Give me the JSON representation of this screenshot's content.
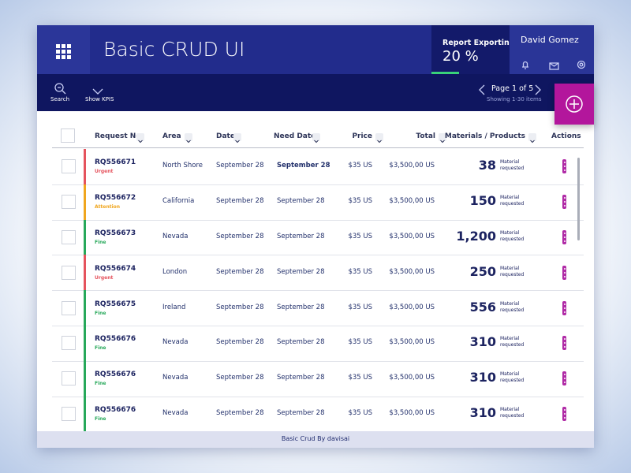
{
  "header": {
    "title": "Basic CRUD UI",
    "report_label": "Report Exporting",
    "report_value": "20 %",
    "user": "David Gomez"
  },
  "toolbar": {
    "search": "Search",
    "show_kpis": "Show KPIS",
    "page": "Page 1 of 5",
    "showing": "Showing 1-30 items"
  },
  "table": {
    "columns": [
      "Request No.",
      "Area",
      "Date",
      "Need Date",
      "Price",
      "Total",
      "Materials / Products",
      "Actions"
    ],
    "rows": [
      {
        "request": "RQ556671",
        "status": "Urgent",
        "color": "#e5535d",
        "area": "North Shore",
        "date": "September 28",
        "need_date": "September 28",
        "price": "$35 US",
        "total": "$3,500,00 US",
        "quantity": "38",
        "note": "Material requested"
      },
      {
        "request": "RQ556672",
        "status": "Attention",
        "color": "#f0a61e",
        "area": "California",
        "date": "September 28",
        "need_date": "September 28",
        "price": "$35 US",
        "total": "$3,500,00 US",
        "quantity": "150",
        "note": "Material requested"
      },
      {
        "request": "RQ556673",
        "status": "Fine",
        "color": "#27a85a",
        "area": "Nevada",
        "date": "September 28",
        "need_date": "September 28",
        "price": "$35 US",
        "total": "$3,500,00 US",
        "quantity": "1,200",
        "note": "Material requested"
      },
      {
        "request": "RQ556674",
        "status": "Urgent",
        "color": "#e5535d",
        "area": "London",
        "date": "September 28",
        "need_date": "September 28",
        "price": "$35 US",
        "total": "$3,500,00 US",
        "quantity": "250",
        "note": "Material requested"
      },
      {
        "request": "RQ556675",
        "status": "Fine",
        "color": "#27a85a",
        "area": "Ireland",
        "date": "September 28",
        "need_date": "September 28",
        "price": "$35 US",
        "total": "$3,500,00 US",
        "quantity": "556",
        "note": "Material requested"
      },
      {
        "request": "RQ556676",
        "status": "Fine",
        "color": "#27a85a",
        "area": "Nevada",
        "date": "September 28",
        "need_date": "September 28",
        "price": "$35 US",
        "total": "$3,500,00 US",
        "quantity": "310",
        "note": "Material requested"
      },
      {
        "request": "RQ556676",
        "status": "Fine",
        "color": "#27a85a",
        "area": "Nevada",
        "date": "September 28",
        "need_date": "September 28",
        "price": "$35 US",
        "total": "$3,500,00 US",
        "quantity": "310",
        "note": "Material requested"
      },
      {
        "request": "RQ556676",
        "status": "Fine",
        "color": "#27a85a",
        "area": "Nevada",
        "date": "September 28",
        "need_date": "September 28",
        "price": "$35 US",
        "total": "$3,500,00 US",
        "quantity": "310",
        "note": "Material requested"
      }
    ]
  },
  "footer": "Basic Crud By davisai"
}
